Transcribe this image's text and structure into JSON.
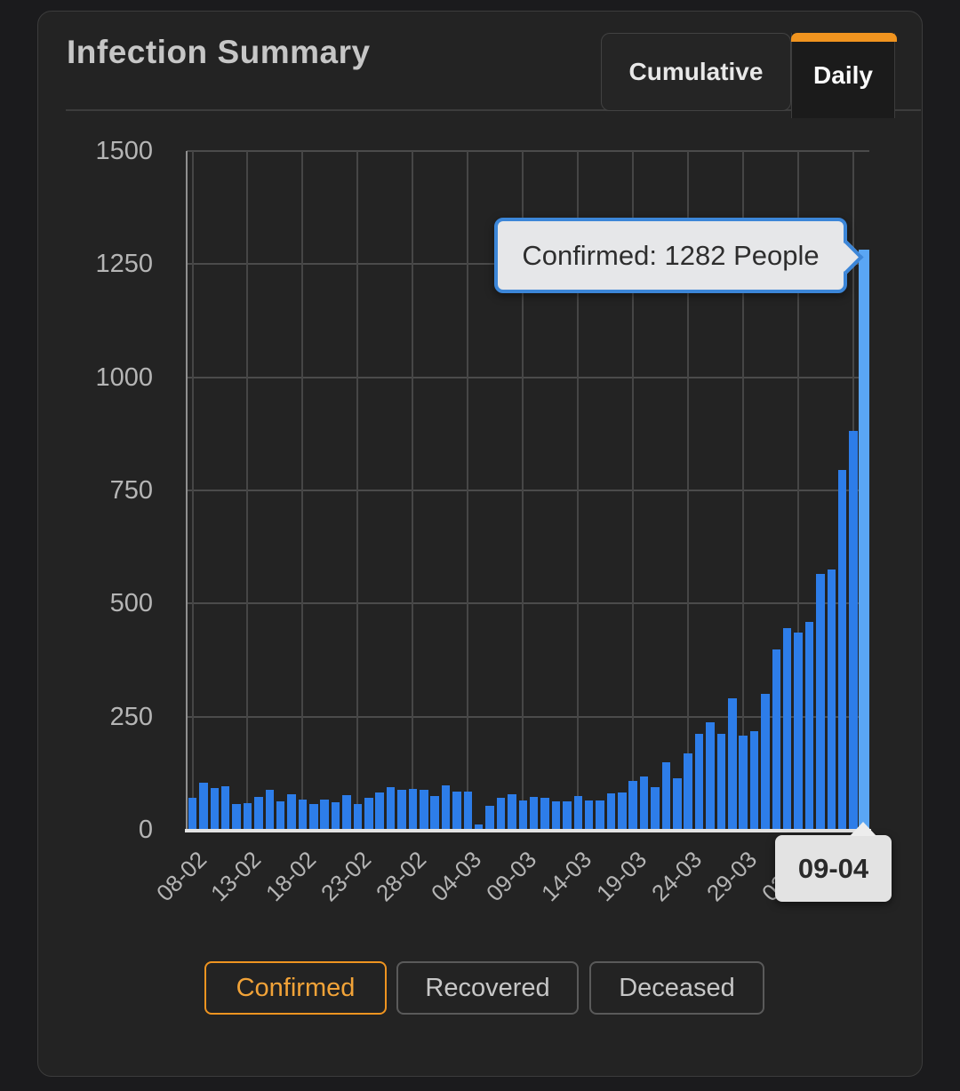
{
  "header": {
    "title": "Infection Summary",
    "tabs": [
      {
        "label": "Cumulative",
        "active": false
      },
      {
        "label": "Daily",
        "active": true
      }
    ]
  },
  "accent_color": "#f0941f",
  "chart_data": {
    "type": "bar",
    "title": "Infection Summary - Daily",
    "xlabel": "",
    "ylabel": "",
    "ylim": [
      0,
      1500
    ],
    "y_ticks": [
      0,
      250,
      500,
      750,
      1000,
      1250,
      1500
    ],
    "x_tick_every": 5,
    "grid": true,
    "bar_color": "#2d7de9",
    "highlight_color": "#5aa6f4",
    "highlight_index": 61,
    "categories": [
      "08-02",
      "09-02",
      "10-02",
      "11-02",
      "12-02",
      "13-02",
      "14-02",
      "15-02",
      "16-02",
      "17-02",
      "18-02",
      "19-02",
      "20-02",
      "21-02",
      "22-02",
      "23-02",
      "24-02",
      "25-02",
      "26-02",
      "27-02",
      "28-02",
      "29-02",
      "01-03",
      "02-03",
      "03-03",
      "04-03",
      "05-03",
      "06-03",
      "07-03",
      "08-03",
      "09-03",
      "10-03",
      "11-03",
      "12-03",
      "13-03",
      "14-03",
      "15-03",
      "16-03",
      "17-03",
      "18-03",
      "19-03",
      "20-03",
      "21-03",
      "22-03",
      "23-03",
      "24-03",
      "25-03",
      "26-03",
      "27-03",
      "28-03",
      "29-03",
      "30-03",
      "31-03",
      "01-04",
      "02-04",
      "03-04",
      "04-04",
      "05-04",
      "06-04",
      "07-04",
      "08-04",
      "09-04"
    ],
    "values": [
      70,
      104,
      93,
      96,
      57,
      58,
      72,
      88,
      62,
      78,
      66,
      56,
      66,
      60,
      76,
      57,
      71,
      82,
      94,
      89,
      91,
      89,
      75,
      99,
      84,
      84,
      11,
      54,
      71,
      78,
      65,
      72,
      70,
      63,
      63,
      74,
      65,
      65,
      81,
      83,
      108,
      118,
      95,
      149,
      114,
      169,
      213,
      237,
      213,
      291,
      208,
      218,
      300,
      398,
      445,
      436,
      459,
      565,
      576,
      795,
      882,
      1282
    ]
  },
  "tooltip": {
    "text": "Confirmed: 1282 People",
    "date_label": "09-04",
    "border_color": "#3c86d8"
  },
  "legend_buttons": [
    {
      "label": "Confirmed",
      "active": true
    },
    {
      "label": "Recovered",
      "active": false
    },
    {
      "label": "Deceased",
      "active": false
    }
  ]
}
